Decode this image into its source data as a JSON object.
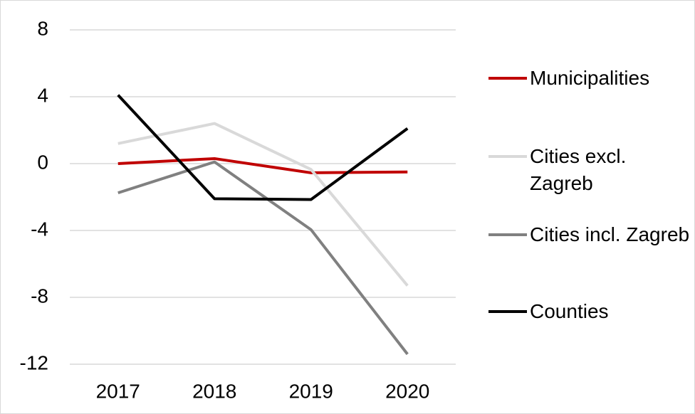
{
  "chart_data": {
    "type": "line",
    "categories": [
      "2017",
      "2018",
      "2019",
      "2020"
    ],
    "series": [
      {
        "name": "Municipalities",
        "color": "#c00000",
        "values": [
          0,
          0.3,
          -0.55,
          -0.5
        ]
      },
      {
        "name": "Cities excl. Zagreb",
        "color": "#d9d9d9",
        "values": [
          1.2,
          2.4,
          -0.35,
          -7.3
        ]
      },
      {
        "name": "Cities incl. Zagreb",
        "color": "#808080",
        "values": [
          -1.75,
          0.1,
          -3.95,
          -11.4
        ]
      },
      {
        "name": "Counties",
        "color": "#000000",
        "values": [
          4.1,
          -2.1,
          -2.15,
          2.1
        ]
      }
    ],
    "ylim": [
      -12,
      8
    ],
    "yticks": [
      -12,
      -8,
      -4,
      0,
      4,
      8
    ],
    "grid": true,
    "legend": "right"
  }
}
